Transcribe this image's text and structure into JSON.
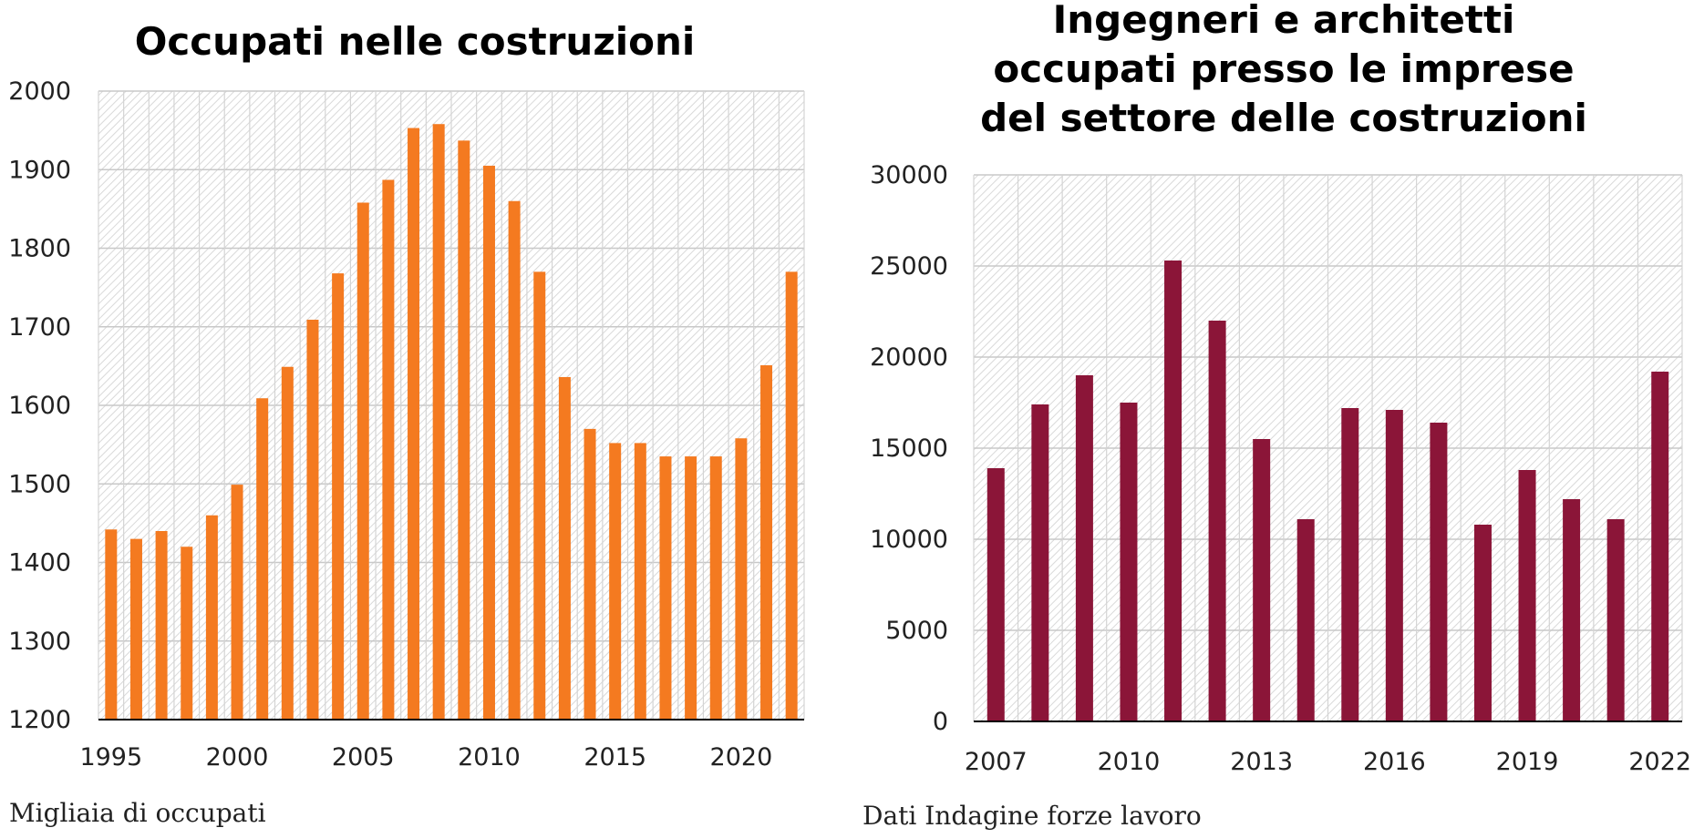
{
  "chart_data": [
    {
      "type": "bar",
      "title": "Occupati nelle costruzioni",
      "note": "Migliaia di occupati",
      "color": "#F47A20",
      "x": [
        1995,
        1996,
        1997,
        1998,
        1999,
        2000,
        2001,
        2002,
        2003,
        2004,
        2005,
        2006,
        2007,
        2008,
        2009,
        2010,
        2011,
        2012,
        2013,
        2014,
        2015,
        2016,
        2017,
        2018,
        2019,
        2020,
        2021,
        2022
      ],
      "values": [
        1442,
        1430,
        1440,
        1420,
        1460,
        1499,
        1609,
        1649,
        1709,
        1768,
        1858,
        1887,
        1953,
        1958,
        1937,
        1905,
        1860,
        1770,
        1636,
        1570,
        1552,
        1552,
        1535,
        1535,
        1535,
        1558,
        1651,
        1770
      ],
      "x_tick_labels": [
        "1995",
        "2000",
        "2005",
        "2010",
        "2015",
        "2020"
      ],
      "y_tick_labels": [
        "1200",
        "1300",
        "1400",
        "1500",
        "1600",
        "1700",
        "1800",
        "1900",
        "2000"
      ],
      "ylim": [
        1200,
        2000
      ],
      "grid": true
    },
    {
      "type": "bar",
      "title": "Ingegneri e architetti occupati presso le imprese del settore delle costruzioni",
      "title_lines": [
        "Ingegneri e architetti",
        "occupati presso le imprese",
        "del settore delle costruzioni"
      ],
      "note": "Dati Indagine forze lavoro",
      "color": "#8B1538",
      "x": [
        2007,
        2008,
        2009,
        2010,
        2011,
        2012,
        2013,
        2014,
        2015,
        2016,
        2017,
        2018,
        2019,
        2020,
        2021,
        2022
      ],
      "values": [
        13900,
        17400,
        19000,
        17500,
        25300,
        22000,
        15500,
        11100,
        17200,
        17100,
        16400,
        10800,
        13800,
        12200,
        11100,
        19200
      ],
      "x_tick_labels": [
        "2007",
        "2010",
        "2013",
        "2016",
        "2019",
        "2022"
      ],
      "y_tick_labels": [
        "0",
        "5000",
        "10000",
        "15000",
        "20000",
        "25000",
        "30000"
      ],
      "ylim": [
        0,
        30000
      ],
      "grid": true
    }
  ]
}
